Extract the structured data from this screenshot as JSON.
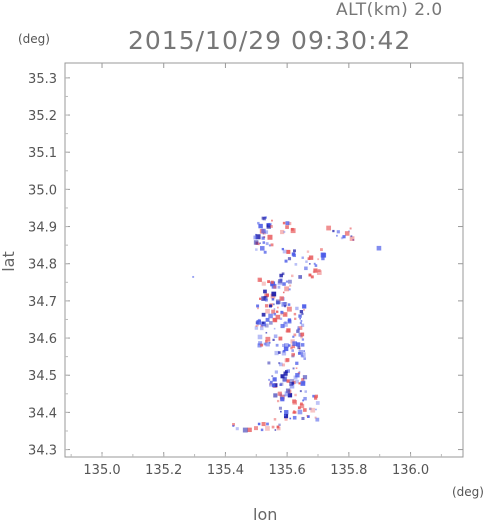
{
  "header": {
    "altitude": "ALT(km) 2.0",
    "timestamp": "2015/10/29 09:30:42",
    "y_unit": "(deg)",
    "x_unit": "(deg)"
  },
  "chart_data": {
    "type": "heatmap",
    "title": "2015/10/29 09:30:42",
    "xlabel": "lon",
    "ylabel": "lat",
    "xlim": [
      134.88,
      136.17
    ],
    "ylim": [
      34.28,
      35.34
    ],
    "x_ticks": [
      "135.0",
      "135.2",
      "135.4",
      "135.6",
      "135.8",
      "136.0"
    ],
    "x_tick_values": [
      135.0,
      135.2,
      135.4,
      135.6,
      135.8,
      136.0
    ],
    "y_ticks": [
      "34.3",
      "34.4",
      "34.5",
      "34.6",
      "34.7",
      "34.8",
      "34.9",
      "35.0",
      "35.1",
      "35.2",
      "35.3"
    ],
    "y_tick_values": [
      34.3,
      34.4,
      34.5,
      34.6,
      34.7,
      34.8,
      34.9,
      35.0,
      35.1,
      35.2,
      35.3
    ],
    "grid": false,
    "colors": {
      "positive": "#e8585a",
      "negative": "#4a5ae8",
      "edge": "#1a1aa8"
    },
    "clusters": [
      {
        "lon": 135.53,
        "lat": 34.91,
        "spread_lon": 0.03,
        "spread_lat": 0.015,
        "n": 10
      },
      {
        "lon": 135.52,
        "lat": 34.86,
        "spread_lon": 0.04,
        "spread_lat": 0.03,
        "n": 22
      },
      {
        "lon": 135.6,
        "lat": 34.9,
        "spread_lon": 0.02,
        "spread_lat": 0.02,
        "n": 8
      },
      {
        "lon": 135.65,
        "lat": 34.8,
        "spread_lon": 0.07,
        "spread_lat": 0.04,
        "n": 34
      },
      {
        "lon": 135.78,
        "lat": 34.88,
        "spread_lon": 0.05,
        "spread_lat": 0.02,
        "n": 12
      },
      {
        "lon": 135.56,
        "lat": 34.72,
        "spread_lon": 0.05,
        "spread_lat": 0.04,
        "n": 40
      },
      {
        "lon": 135.58,
        "lat": 34.63,
        "spread_lon": 0.08,
        "spread_lat": 0.06,
        "n": 95
      },
      {
        "lon": 135.6,
        "lat": 34.52,
        "spread_lon": 0.06,
        "spread_lat": 0.05,
        "n": 60
      },
      {
        "lon": 135.63,
        "lat": 34.42,
        "spread_lon": 0.07,
        "spread_lat": 0.04,
        "n": 50
      },
      {
        "lon": 135.5,
        "lat": 34.36,
        "spread_lon": 0.08,
        "spread_lat": 0.01,
        "n": 16
      },
      {
        "lon": 135.3,
        "lat": 34.76,
        "spread_lon": 0.005,
        "spread_lat": 0.005,
        "n": 1
      },
      {
        "lon": 135.9,
        "lat": 34.84,
        "spread_lon": 0.005,
        "spread_lat": 0.005,
        "n": 1
      }
    ]
  }
}
